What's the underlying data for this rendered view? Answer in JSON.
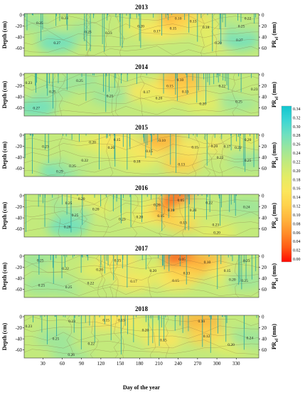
{
  "chart_data": {
    "type": "heatmap",
    "years": [
      "2013",
      "2014",
      "2015",
      "2016",
      "2017",
      "2018"
    ],
    "ylabel": "Depth (cm)",
    "right_label": "PR",
    "right_label_sub": "ef",
    "right_label_unit": "(mm)",
    "xlabel": "Day of the year",
    "x_ticks": [
      30,
      60,
      90,
      120,
      150,
      180,
      210,
      240,
      270,
      300,
      330
    ],
    "x_range": [
      1,
      365
    ],
    "depth_ticks": [
      0,
      -20,
      -40,
      -60
    ],
    "depth_range": [
      -72,
      0
    ],
    "pr_ticks": [
      0,
      20,
      40,
      60
    ],
    "colorbar_ticks": [
      "0.34",
      "0.32",
      "0.30",
      "0.28",
      "0.26",
      "0.24",
      "0.22",
      "0.20",
      "0.18",
      "0.16",
      "0.14",
      "0.12",
      "0.10",
      "0.08",
      "0.06",
      "0.04",
      "0.02",
      "0.00"
    ],
    "colorbar_range": [
      0,
      0.35
    ],
    "colorbar_colors": [
      "#ff0a00",
      "#ff5a14",
      "#ff8c28",
      "#ffb43c",
      "#ffd24c",
      "#fbe65c",
      "#e4ec64",
      "#c3ea7c",
      "#9be69c",
      "#6ee0c0",
      "#3cd6d4",
      "#10c6d0"
    ],
    "panels": [
      {
        "year": "2013",
        "labels": [
          {
            "d": 25,
            "z": -14,
            "t": "0.25"
          },
          {
            "d": 64,
            "z": -5,
            "t": "0.23"
          },
          {
            "d": 52,
            "z": -50,
            "t": "0.27"
          },
          {
            "d": 100,
            "z": -30,
            "t": "0.25"
          },
          {
            "d": 132,
            "z": -32,
            "t": "0.23"
          },
          {
            "d": 182,
            "z": -20,
            "t": "0.20"
          },
          {
            "d": 207,
            "z": -29,
            "t": "0.17"
          },
          {
            "d": 232,
            "z": -24,
            "t": "0.15"
          },
          {
            "d": 240,
            "z": -6,
            "t": "0.10"
          },
          {
            "d": 263,
            "z": -11,
            "t": "0.13"
          },
          {
            "d": 283,
            "z": -22,
            "t": "0.18"
          },
          {
            "d": 302,
            "z": -50,
            "t": "0.20"
          },
          {
            "d": 335,
            "z": -45,
            "t": "0.27"
          },
          {
            "d": 338,
            "z": -20,
            "t": "0.25"
          },
          {
            "d": 348,
            "z": -6,
            "t": "0.22"
          }
        ]
      },
      {
        "year": "2014",
        "labels": [
          {
            "d": 8,
            "z": -14,
            "t": "0.23"
          },
          {
            "d": 45,
            "z": -30,
            "t": "0.25"
          },
          {
            "d": 87,
            "z": -10,
            "t": "0.25"
          },
          {
            "d": 134,
            "z": -38,
            "t": "0.25"
          },
          {
            "d": 20,
            "z": -60,
            "t": "0.27"
          },
          {
            "d": 191,
            "z": -31,
            "t": "0.17"
          },
          {
            "d": 210,
            "z": -42,
            "t": "0.20"
          },
          {
            "d": 227,
            "z": -20,
            "t": "0.15"
          },
          {
            "d": 243,
            "z": -9,
            "t": "0.10"
          },
          {
            "d": 251,
            "z": -30,
            "t": "0.13"
          },
          {
            "d": 278,
            "z": -52,
            "t": "0.20"
          },
          {
            "d": 308,
            "z": -20,
            "t": "0.22"
          },
          {
            "d": 334,
            "z": -48,
            "t": "0.25"
          },
          {
            "d": 358,
            "z": -26,
            "t": "0.23"
          }
        ]
      },
      {
        "year": "2015",
        "labels": [
          {
            "d": 34,
            "z": -20,
            "t": "0.23"
          },
          {
            "d": 56,
            "z": -65,
            "t": "0.29"
          },
          {
            "d": 76,
            "z": -55,
            "t": "0.25"
          },
          {
            "d": 107,
            "z": -12,
            "t": "0.20"
          },
          {
            "d": 95,
            "z": -45,
            "t": "0.22"
          },
          {
            "d": 136,
            "z": -22,
            "t": "0.20"
          },
          {
            "d": 145,
            "z": -8,
            "t": "0.15"
          },
          {
            "d": 176,
            "z": -47,
            "t": "0.18"
          },
          {
            "d": 195,
            "z": -28,
            "t": "0.15"
          },
          {
            "d": 215,
            "z": -9,
            "t": "0.10"
          },
          {
            "d": 245,
            "z": -52,
            "t": "0.13"
          },
          {
            "d": 266,
            "z": -21,
            "t": "0.15"
          },
          {
            "d": 296,
            "z": -19,
            "t": "0.20"
          },
          {
            "d": 305,
            "z": -40,
            "t": "0.22"
          },
          {
            "d": 316,
            "z": -20,
            "t": "0.17"
          },
          {
            "d": 333,
            "z": -22,
            "t": "0.22"
          },
          {
            "d": 348,
            "z": -8,
            "t": "0.20"
          },
          {
            "d": 348,
            "z": -45,
            "t": "0.25"
          }
        ]
      },
      {
        "year": "2016",
        "labels": [
          {
            "d": 70,
            "z": -13,
            "t": "0.25"
          },
          {
            "d": 90,
            "z": -5,
            "t": "0.20"
          },
          {
            "d": 112,
            "z": -24,
            "t": "0.20"
          },
          {
            "d": 80,
            "z": -35,
            "t": "0.25"
          },
          {
            "d": 68,
            "z": -56,
            "t": "0.28"
          },
          {
            "d": 153,
            "z": -42,
            "t": "0.23"
          },
          {
            "d": 180,
            "z": -38,
            "t": "0.20"
          },
          {
            "d": 207,
            "z": -16,
            "t": "0.20"
          },
          {
            "d": 213,
            "z": -36,
            "t": "0.15"
          },
          {
            "d": 229,
            "z": -26,
            "t": "0.10"
          },
          {
            "d": 244,
            "z": -8,
            "t": "0.05"
          },
          {
            "d": 248,
            "z": -48,
            "t": "0.13"
          },
          {
            "d": 263,
            "z": -26,
            "t": "0.20"
          },
          {
            "d": 288,
            "z": -12,
            "t": "0.22"
          },
          {
            "d": 298,
            "z": -52,
            "t": "0.23"
          },
          {
            "d": 300,
            "z": -66,
            "t": "0.20"
          },
          {
            "d": 346,
            "z": -20,
            "t": "0.24"
          }
        ]
      },
      {
        "year": "2017",
        "labels": [
          {
            "d": 26,
            "z": -7,
            "t": "0.25"
          },
          {
            "d": 65,
            "z": -22,
            "t": "0.22"
          },
          {
            "d": 28,
            "z": -52,
            "t": "0.25"
          },
          {
            "d": 70,
            "z": -55,
            "t": "0.25"
          },
          {
            "d": 104,
            "z": -48,
            "t": "0.22"
          },
          {
            "d": 118,
            "z": -24,
            "t": "0.20"
          },
          {
            "d": 146,
            "z": -7,
            "t": "0.15"
          },
          {
            "d": 171,
            "z": -45,
            "t": "0.17"
          },
          {
            "d": 201,
            "z": -26,
            "t": "0.20"
          },
          {
            "d": 236,
            "z": -44,
            "t": "0.15"
          },
          {
            "d": 246,
            "z": -5,
            "t": "0.05"
          },
          {
            "d": 253,
            "z": -30,
            "t": "0.13"
          },
          {
            "d": 285,
            "z": -10,
            "t": "0.10"
          },
          {
            "d": 316,
            "z": -26,
            "t": "0.15"
          },
          {
            "d": 324,
            "z": -42,
            "t": "0.20"
          },
          {
            "d": 346,
            "z": -8,
            "t": "0.23"
          },
          {
            "d": 343,
            "z": -44,
            "t": "0.25"
          }
        ]
      },
      {
        "year": "2018",
        "labels": [
          {
            "d": 8,
            "z": -17,
            "t": "0.23"
          },
          {
            "d": 50,
            "z": -39,
            "t": "0.25"
          },
          {
            "d": 75,
            "z": -8,
            "t": "0.23"
          },
          {
            "d": 74,
            "z": -68,
            "t": "0.26"
          },
          {
            "d": 105,
            "z": -48,
            "t": "0.22"
          },
          {
            "d": 128,
            "z": -6,
            "t": "0.15"
          },
          {
            "d": 152,
            "z": -6,
            "t": "0.15"
          },
          {
            "d": 189,
            "z": -24,
            "t": "0.20"
          },
          {
            "d": 217,
            "z": -42,
            "t": "0.15"
          },
          {
            "d": 276,
            "z": -8,
            "t": "0.10"
          },
          {
            "d": 284,
            "z": -35,
            "t": "0.12"
          },
          {
            "d": 322,
            "z": -50,
            "t": "0.20"
          },
          {
            "d": 351,
            "z": -38,
            "t": "0.24"
          }
        ]
      }
    ]
  }
}
